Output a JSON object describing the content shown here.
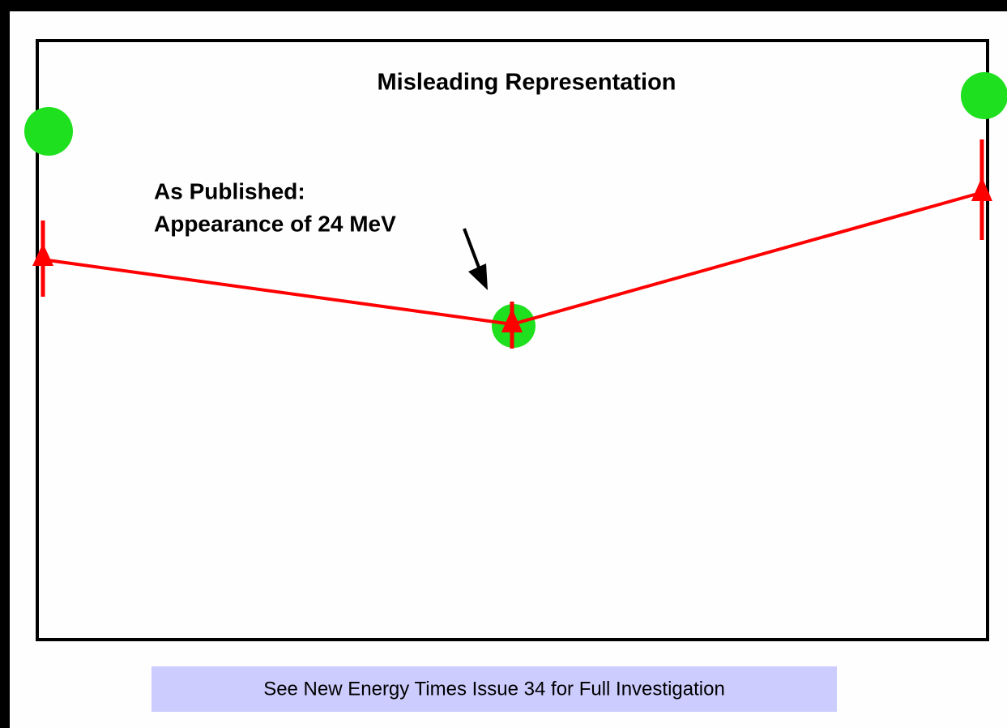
{
  "title": "Misleading Representation",
  "annotation": [
    "As Published:",
    "Appearance of 24 MeV"
  ],
  "footer": "See New Energy Times Issue 34 for Full Investigation"
}
